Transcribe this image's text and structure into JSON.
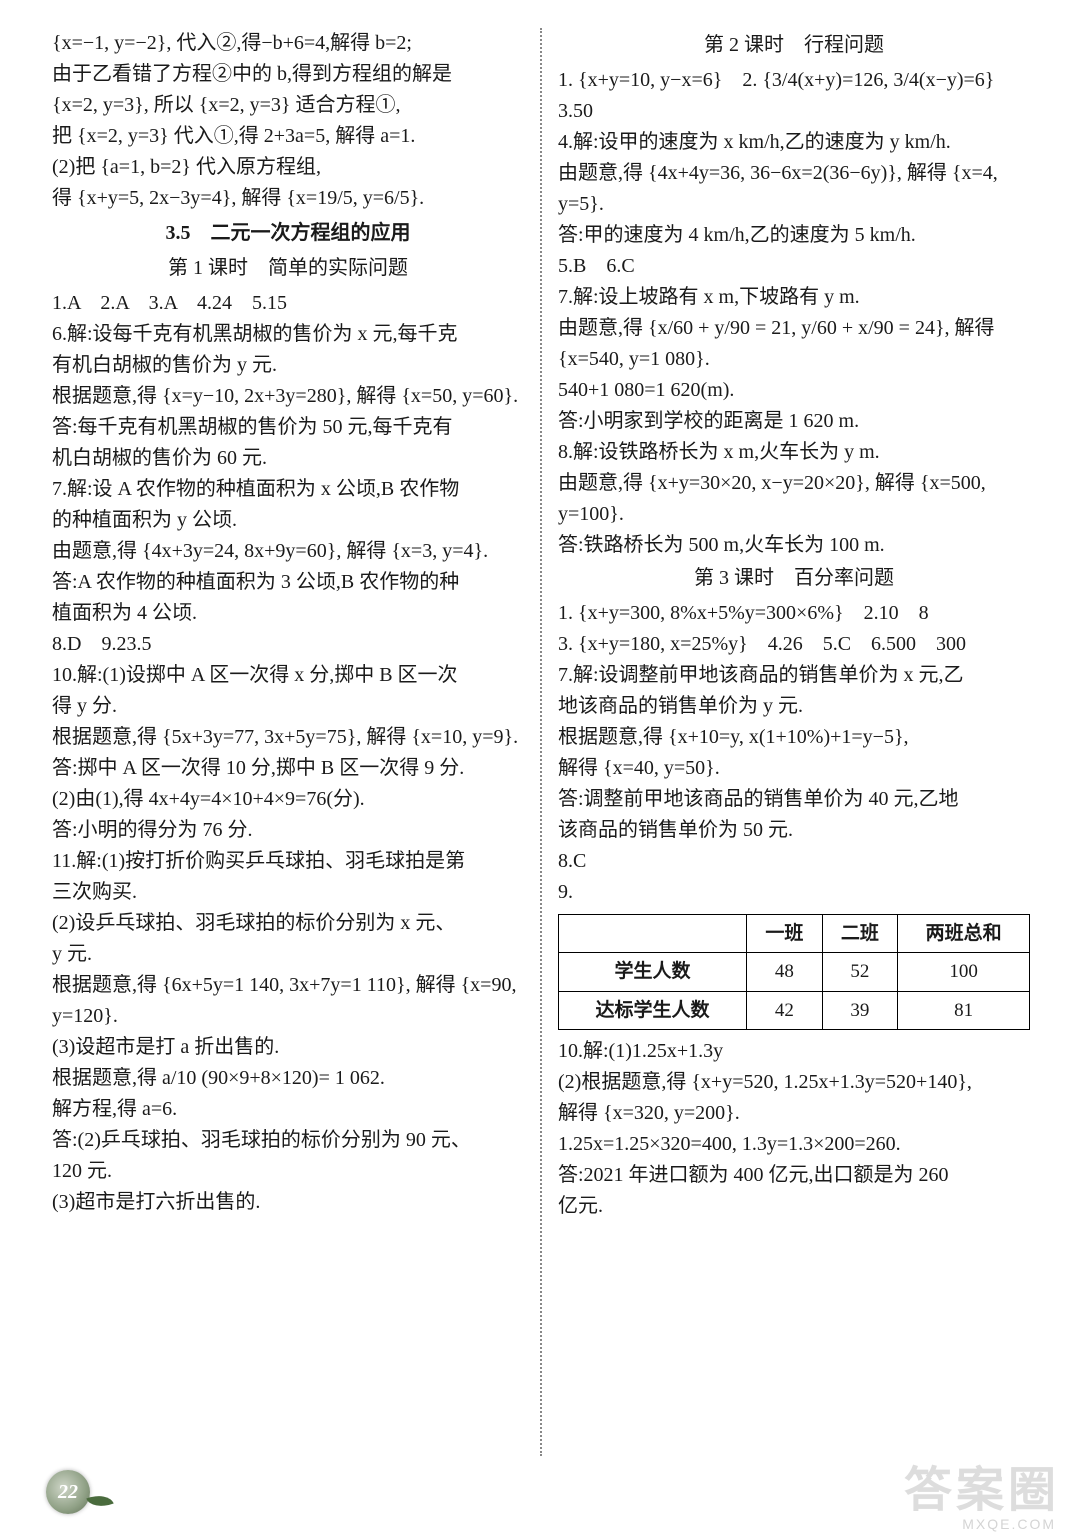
{
  "page_number": "22",
  "watermark": {
    "main": "答案圈",
    "sub": "MXQE.COM"
  },
  "left": {
    "l1": "{x=−1, y=−2}, 代入②,得−b+6=4,解得 b=2;",
    "l2": "由于乙看错了方程②中的 b,得到方程组的解是",
    "l3": "{x=2, y=3}, 所以 {x=2, y=3} 适合方程①,",
    "l4": "把 {x=2, y=3} 代入①,得 2+3a=5, 解得 a=1.",
    "l5": "(2)把 {a=1, b=2} 代入原方程组,",
    "l6": "得 {x+y=5, 2x−3y=4}, 解得 {x=19/5, y=6/5}.",
    "h1": "3.5　二元一次方程组的应用",
    "s1": "第 1 课时　简单的实际问题",
    "l7": "1.A　2.A　3.A　4.24　5.15",
    "l8": "6.解:设每千克有机黑胡椒的售价为 x 元,每千克",
    "l9": "有机白胡椒的售价为 y 元.",
    "l10": "根据题意,得 {x=y−10, 2x+3y=280}, 解得 {x=50, y=60}.",
    "l11": "答:每千克有机黑胡椒的售价为 50 元,每千克有",
    "l12": "机白胡椒的售价为 60 元.",
    "l13": "7.解:设 A 农作物的种植面积为 x 公顷,B 农作物",
    "l14": "的种植面积为 y 公顷.",
    "l15": "由题意,得 {4x+3y=24, 8x+9y=60}, 解得 {x=3, y=4}.",
    "l16": "答:A 农作物的种植面积为 3 公顷,B 农作物的种",
    "l17": "植面积为 4 公顷.",
    "l18": "8.D　9.23.5",
    "l19": "10.解:(1)设掷中 A 区一次得 x 分,掷中 B 区一次",
    "l20": "得 y 分.",
    "l21": "根据题意,得 {5x+3y=77, 3x+5y=75}, 解得 {x=10, y=9}.",
    "l22": "答:掷中 A 区一次得 10 分,掷中 B 区一次得 9 分.",
    "l23": "(2)由(1),得 4x+4y=4×10+4×9=76(分).",
    "l24": "答:小明的得分为 76 分.",
    "l25": "11.解:(1)按打折价购买乒乓球拍、羽毛球拍是第",
    "l26": "三次购买.",
    "l27": "(2)设乒乓球拍、羽毛球拍的标价分别为 x 元、",
    "l28": "y 元.",
    "l29": "根据题意,得 {6x+5y=1 140, 3x+7y=1 110}, 解得 {x=90, y=120}.",
    "l30": "(3)设超市是打 a 折出售的.",
    "l31": "根据题意,得 a/10 (90×9+8×120)= 1 062.",
    "l32": "解方程,得 a=6.",
    "l33": "答:(2)乒乓球拍、羽毛球拍的标价分别为 90 元、",
    "l34": "120 元.",
    "l35": "(3)超市是打六折出售的."
  },
  "right": {
    "s2": "第 2 课时　行程问题",
    "r1": "1. {x+y=10, y−x=6}　2. {3/4(x+y)=126, 3/4(x−y)=6}　3.50",
    "r2": "4.解:设甲的速度为 x km/h,乙的速度为 y km/h.",
    "r3": "由题意,得 {4x+4y=36, 36−6x=2(36−6y)}, 解得 {x=4, y=5}.",
    "r4": "答:甲的速度为 4 km/h,乙的速度为 5 km/h.",
    "r5": "5.B　6.C",
    "r6": "7.解:设上坡路有 x m,下坡路有 y m.",
    "r7": "由题意,得 {x/60 + y/90 = 21, y/60 + x/90 = 24}, 解得 {x=540, y=1 080}.",
    "r8": "540+1 080=1 620(m).",
    "r9": "答:小明家到学校的距离是 1 620 m.",
    "r10": "8.解:设铁路桥长为 x m,火车长为 y m.",
    "r11": "由题意,得 {x+y=30×20, x−y=20×20}, 解得 {x=500, y=100}.",
    "r12": "答:铁路桥长为 500 m,火车长为 100 m.",
    "s3": "第 3 课时　百分率问题",
    "r13": "1. {x+y=300, 8%x+5%y=300×6%}　2.10　8",
    "r14": "3. {x+y=180, x=25%y}　4.26　5.C　6.500　300",
    "r15": "7.解:设调整前甲地该商品的销售单价为 x 元,乙",
    "r16": "地该商品的销售单价为 y 元.",
    "r17": "根据题意,得 {x+10=y, x(1+10%)+1=y−5},",
    "r18": "解得 {x=40, y=50}.",
    "r19": "答:调整前甲地该商品的销售单价为 40 元,乙地",
    "r20": "该商品的销售单价为 50 元.",
    "r21": "8.C",
    "r22": "9.",
    "table": {
      "columns": [
        "",
        "一班",
        "二班",
        "两班总和"
      ],
      "rows": [
        [
          "学生人数",
          "48",
          "52",
          "100"
        ],
        [
          "达标学生人数",
          "42",
          "39",
          "81"
        ]
      ]
    },
    "r23": "10.解:(1)1.25x+1.3y",
    "r24": "(2)根据题意,得 {x+y=520, 1.25x+1.3y=520+140},",
    "r25": "解得 {x=320, y=200}.",
    "r26": "1.25x=1.25×320=400, 1.3y=1.3×200=260.",
    "r27": "答:2021 年进口额为 400 亿元,出口额是为 260",
    "r28": "亿元."
  }
}
